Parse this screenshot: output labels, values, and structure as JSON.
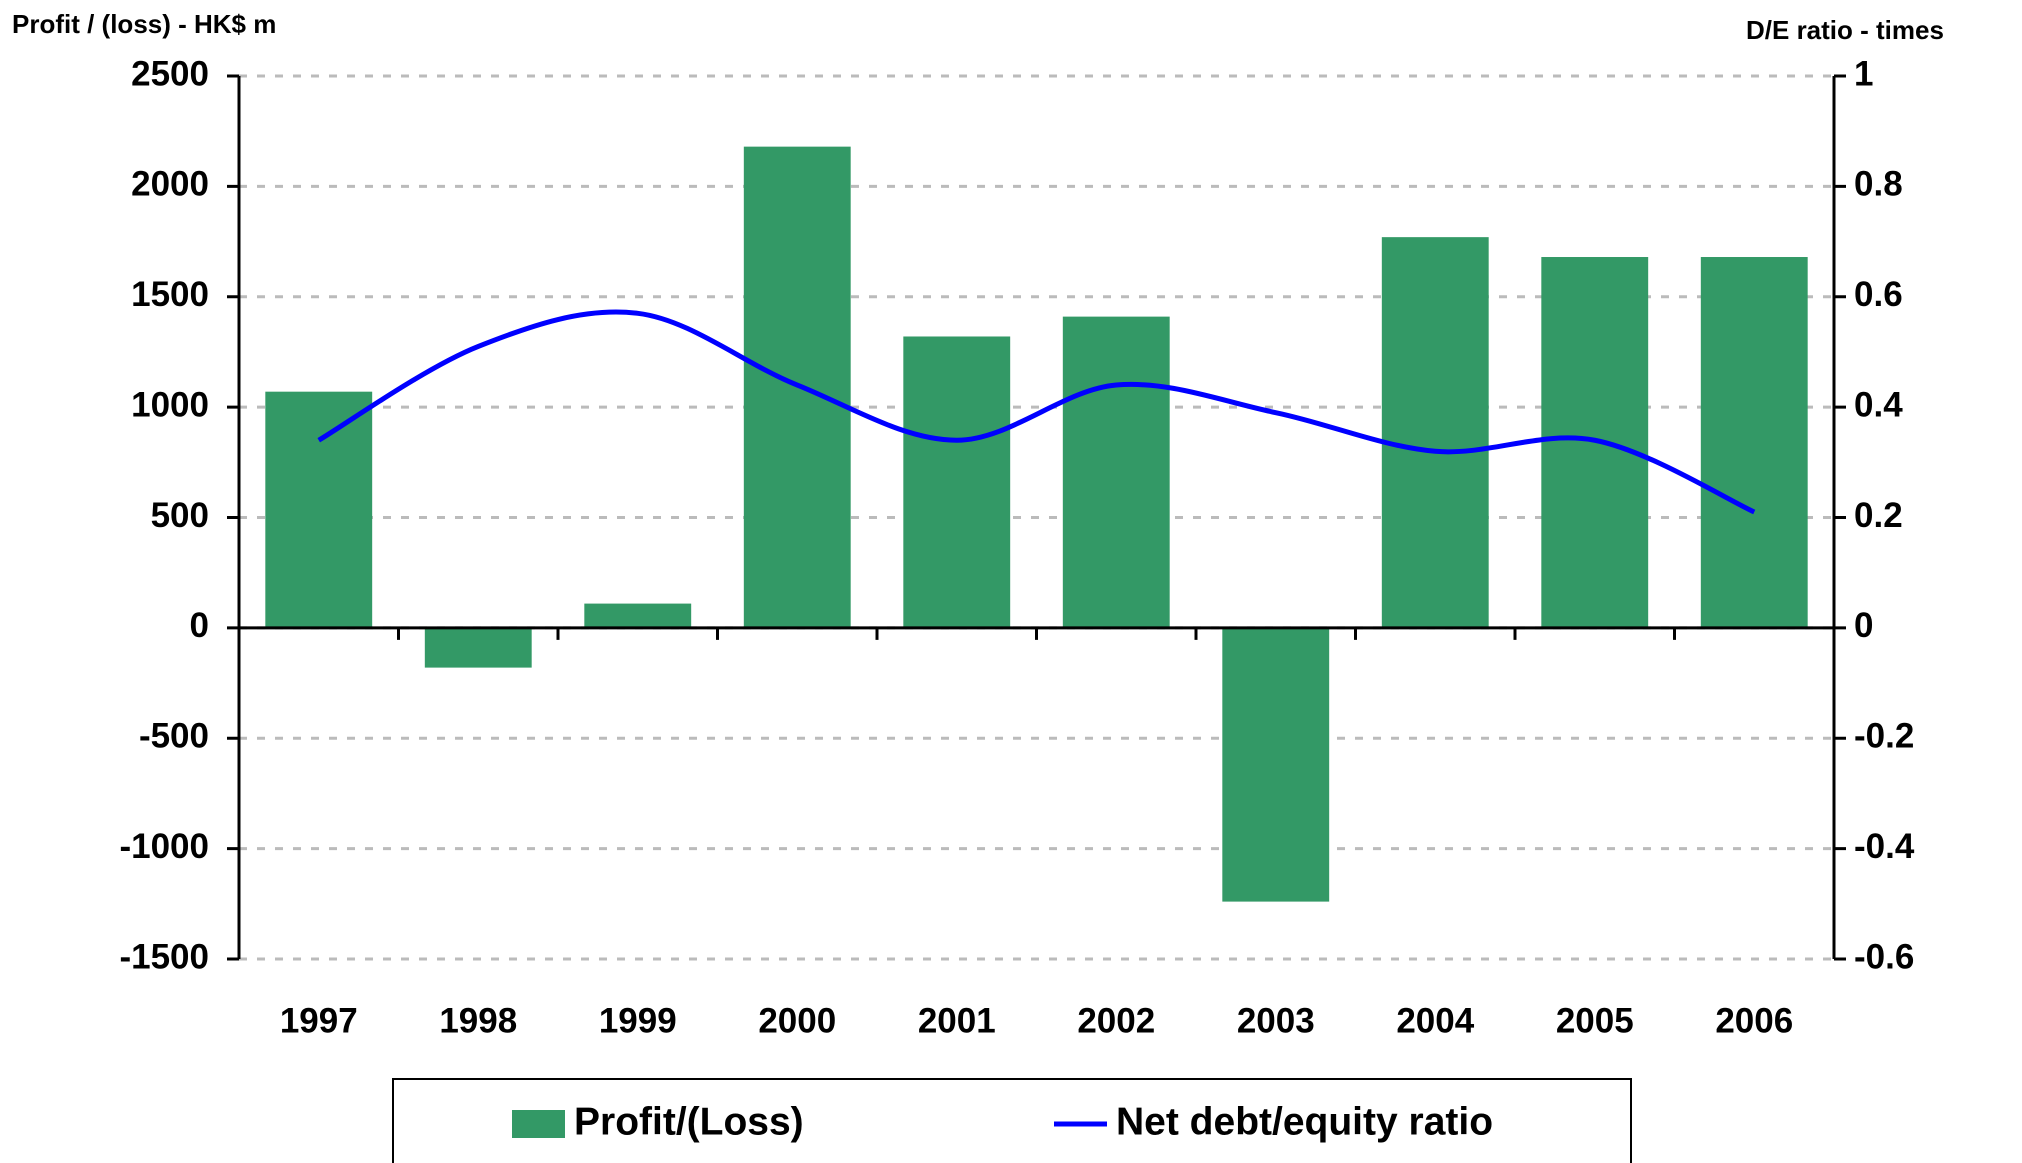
{
  "chart_data": {
    "type": "bar-line",
    "y_label": "Profit / (loss) - HK$ m",
    "y2_label": "D/E ratio - times",
    "categories": [
      "1997",
      "1998",
      "1999",
      "2000",
      "2001",
      "2002",
      "2003",
      "2004",
      "2005",
      "2006"
    ],
    "series": [
      {
        "name": "Profit/(Loss)",
        "type": "bar",
        "color": "#339966",
        "values": [
          1070,
          -180,
          110,
          2180,
          1320,
          1410,
          -1240,
          1770,
          1680,
          1680
        ]
      },
      {
        "name": "Net debt/equity ratio",
        "type": "line",
        "axis": "y2",
        "color": "#0000ff",
        "values": [
          0.34,
          0.51,
          0.57,
          0.44,
          0.34,
          0.44,
          0.39,
          0.32,
          0.34,
          0.21
        ]
      }
    ],
    "ylim": [
      -1500,
      2500
    ],
    "yticks": [
      -1500,
      -1000,
      -500,
      0,
      500,
      1000,
      1500,
      2000,
      2500
    ],
    "y2lim": [
      -0.6,
      1
    ],
    "y2ticks": [
      -0.6,
      -0.4,
      -0.2,
      0,
      0.2,
      0.4,
      0.6,
      0.8,
      1
    ],
    "grid": true,
    "legend": "bottom"
  }
}
